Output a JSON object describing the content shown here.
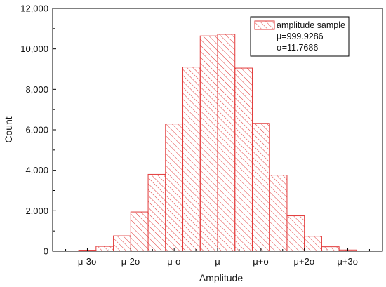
{
  "chart_data": {
    "type": "bar",
    "xlabel": "Amplitude",
    "ylabel": "Count",
    "ylim": [
      0,
      12000
    ],
    "yticks": [
      0,
      2000,
      4000,
      6000,
      8000,
      10000,
      12000
    ],
    "ytick_labels": [
      "0",
      "2,000",
      "4,000",
      "6,000",
      "8,000",
      "10,000",
      "12,000"
    ],
    "xticks": [
      -3,
      -2,
      -1,
      0,
      1,
      2,
      3
    ],
    "xtick_labels": [
      "μ-3σ",
      "μ-2σ",
      "μ-σ",
      "μ",
      "μ+σ",
      "μ+2σ",
      "μ+3σ"
    ],
    "xlim": [
      -3.8,
      3.8
    ],
    "bin_width": 0.4,
    "bins_left": [
      -3.2,
      -2.8,
      -2.4,
      -2.0,
      -1.6,
      -1.2,
      -0.8,
      -0.4,
      0.0,
      0.4,
      0.8,
      1.2,
      1.6,
      2.0,
      2.4,
      2.8
    ],
    "series": [
      {
        "name": "amplitude sample",
        "values": [
          50,
          240,
          760,
          1940,
          3800,
          6290,
          9100,
          10640,
          10720,
          9050,
          6320,
          3760,
          1750,
          740,
          220,
          60
        ],
        "color": "#e23a3a",
        "pattern": "diagonal-hatch"
      }
    ],
    "legend": {
      "position": "top-right",
      "entries": [
        "amplitude sample"
      ],
      "stats": [
        "μ=999.9286",
        "σ=11.7686"
      ]
    },
    "grid": false
  }
}
